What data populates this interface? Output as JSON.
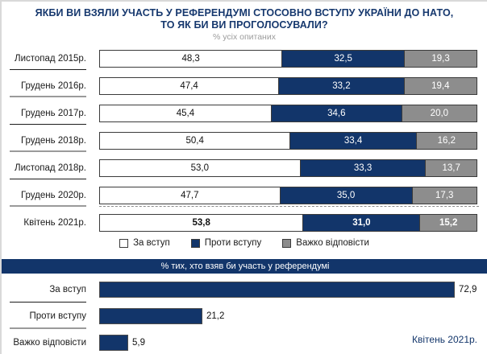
{
  "header": {
    "title_line1": "ЯКБИ ВИ ВЗЯЛИ УЧАСТЬ У РЕФЕРЕНДУМІ СТОСОВНО ВСТУПУ УКРАЇНИ ДО НАТО,",
    "title_line2": "ТО ЯК БИ ВИ ПРОГОЛОСУВАЛИ?",
    "subtitle": "% усіх опитаних"
  },
  "colors": {
    "navy": "#12356A",
    "gray": "#8D8D8D",
    "white": "#FFFFFF",
    "bar_border": "#3B3B3B",
    "separator_dark": "#1C1C1C",
    "separator_gray": "#9A9A9A",
    "subtitle_gray": "#9C9C9C",
    "title_navy": "#16386E"
  },
  "legend": {
    "items": [
      {
        "label": "За вступ",
        "color": "#FFFFFF"
      },
      {
        "label": "Проти вступу",
        "color": "#12356A"
      },
      {
        "label": "Важко відповісти",
        "color": "#8D8D8D"
      }
    ]
  },
  "note": "Квітень 2021р.",
  "chart_data": [
    {
      "type": "bar",
      "variant": "horizontal-stacked",
      "title": "ЯКБИ ВИ ВЗЯЛИ УЧАСТЬ У РЕФЕРЕНДУМІ СТОСОВНО ВСТУПУ УКРАЇНИ ДО НАТО, ТО ЯК БИ ВИ ПРОГОЛОСУВАЛИ?",
      "subtitle": "% усіх опитаних",
      "unit": "%",
      "xlim": [
        0,
        100
      ],
      "grid": false,
      "legend_position": "bottom",
      "categories": [
        "Листопад 2015р.",
        "Грудень 2016р.",
        "Грудень 2017р.",
        "Грудень 2018р.",
        "Листопад 2018р.",
        "Грудень 2020р.",
        "Квітень 2021р."
      ],
      "series": [
        {
          "name": "За вступ",
          "color": "#FFFFFF",
          "values": [
            48.3,
            47.4,
            45.4,
            50.4,
            53.0,
            47.7,
            53.8
          ],
          "labels": [
            "48,3",
            "47,4",
            "45,4",
            "50,4",
            "53,0",
            "47,7",
            "53,8"
          ]
        },
        {
          "name": "Проти вступу",
          "color": "#12356A",
          "values": [
            32.5,
            33.2,
            34.6,
            33.4,
            33.3,
            35.0,
            31.0
          ],
          "labels": [
            "32,5",
            "33,2",
            "34,6",
            "33,4",
            "33,3",
            "35,0",
            "31,0"
          ]
        },
        {
          "name": "Важко відповісти",
          "color": "#8D8D8D",
          "values": [
            19.3,
            19.4,
            20.0,
            16.2,
            13.7,
            17.3,
            15.2
          ],
          "labels": [
            "19,3",
            "19,4",
            "20,0",
            "16,2",
            "13,7",
            "17,3",
            "15,2"
          ]
        }
      ],
      "bold_category": "Квітень 2021р."
    },
    {
      "type": "bar",
      "variant": "horizontal",
      "title": "% тих, хто взяв би участь у референдумі",
      "unit": "%",
      "xlim": [
        0,
        78
      ],
      "grid": false,
      "bar_color": "#12356A",
      "categories": [
        "За вступ",
        "Проти вступу",
        "Важко відповісти"
      ],
      "values": [
        72.9,
        21.2,
        5.9
      ],
      "labels": [
        "72,9",
        "21,2",
        "5,9"
      ],
      "note": "Квітень 2021р."
    }
  ]
}
